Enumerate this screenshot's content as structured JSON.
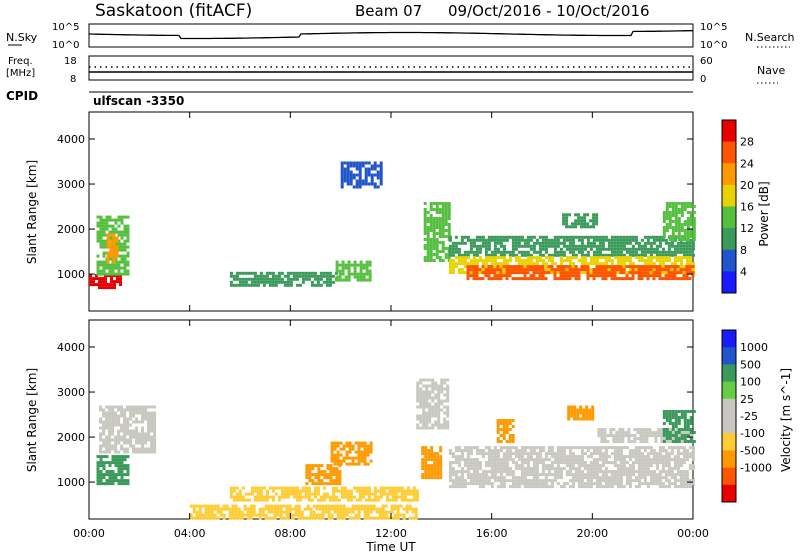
{
  "header": {
    "station": "Saskatoon (fitACF)",
    "beam": "Beam 07",
    "date_range": "09/Oct/2016 - 10/Oct/2016",
    "cpid_label": "CPID",
    "cpid_value": "ulfscan -3350"
  },
  "top_panels": {
    "nsky_label": "N.Sky",
    "nsky_ticks": [
      "10^5",
      "10^0"
    ],
    "nsearch_label": "N.Search",
    "nsearch_ticks": [
      "10^5",
      "10^0"
    ],
    "freq_label_1": "Freq.",
    "freq_label_2": "[MHz]",
    "freq_ticks": [
      "18",
      "8"
    ],
    "nave_label": "Nave",
    "nave_ticks": [
      "60",
      "0"
    ]
  },
  "colors": {
    "power_scale": [
      "#1a1aff",
      "#2255cc",
      "#3a9a5a",
      "#55c040",
      "#e8d200",
      "#ff9900",
      "#ff5500",
      "#e80000"
    ],
    "velocity_scale": [
      "#e80000",
      "#ff5500",
      "#ff9900",
      "#ffcc33",
      "#c8c8c0",
      "#c8c8c0",
      "#66cc44",
      "#3a9a5a",
      "#2255cc",
      "#1a1aff"
    ]
  },
  "chart_data": [
    {
      "type": "heatmap",
      "panel": "power",
      "ylabel": "Slant Range [km]",
      "yticks": [
        1000,
        2000,
        3000,
        4000
      ],
      "ylim": [
        180,
        4600
      ],
      "xlim": [
        0,
        24
      ],
      "colorbar_label": "Power [dB]",
      "colorbar_ticks": [
        4,
        8,
        12,
        16,
        20,
        24,
        28
      ],
      "colorbar_range": [
        0,
        32
      ],
      "regions": [
        {
          "t0": 0.0,
          "t1": 1.3,
          "r0": 700,
          "r1": 1000,
          "value": 30
        },
        {
          "t0": 0.3,
          "t1": 1.6,
          "r0": 1000,
          "r1": 2300,
          "value": 14
        },
        {
          "t0": 0.7,
          "t1": 1.1,
          "r0": 1300,
          "r1": 1900,
          "value": 22
        },
        {
          "t0": 5.6,
          "t1": 9.8,
          "r0": 750,
          "r1": 1050,
          "value": 9
        },
        {
          "t0": 9.8,
          "t1": 11.2,
          "r0": 900,
          "r1": 1300,
          "value": 12
        },
        {
          "t0": 10.0,
          "t1": 11.6,
          "r0": 2950,
          "r1": 3500,
          "value": 6
        },
        {
          "t0": 13.3,
          "t1": 14.3,
          "r0": 1300,
          "r1": 2600,
          "value": 14
        },
        {
          "t0": 14.3,
          "t1": 24.0,
          "r0": 1400,
          "r1": 1850,
          "value": 9
        },
        {
          "t0": 14.3,
          "t1": 24.0,
          "r0": 1050,
          "r1": 1400,
          "value": 18
        },
        {
          "t0": 15.0,
          "t1": 24.0,
          "r0": 900,
          "r1": 1200,
          "value": 26
        },
        {
          "t0": 18.8,
          "t1": 20.2,
          "r0": 2050,
          "r1": 2350,
          "value": 10
        },
        {
          "t0": 22.8,
          "t1": 24.0,
          "r0": 1800,
          "r1": 2600,
          "value": 12
        }
      ]
    },
    {
      "type": "heatmap",
      "panel": "velocity",
      "ylabel": "Slant Range [km]",
      "yticks": [
        1000,
        2000,
        3000,
        4000
      ],
      "ylim": [
        180,
        4600
      ],
      "xlim": [
        0,
        24
      ],
      "xlabel": "Time UT",
      "xticks": [
        "00:00",
        "04:00",
        "08:00",
        "12:00",
        "16:00",
        "20:00",
        "00:00"
      ],
      "colorbar_label": "Velocity [m s^-1]",
      "colorbar_ticks": [
        "1000",
        "500",
        "100",
        "25",
        "-25",
        "-100",
        "-500",
        "-1000"
      ],
      "regions": [
        {
          "t0": 0.3,
          "t1": 1.6,
          "r0": 1000,
          "r1": 1600,
          "value": 150
        },
        {
          "t0": 0.4,
          "t1": 2.6,
          "r0": 1700,
          "r1": 2700,
          "value": 0
        },
        {
          "t0": 5.6,
          "t1": 13.0,
          "r0": 600,
          "r1": 900,
          "value": -60
        },
        {
          "t0": 8.6,
          "t1": 10.0,
          "r0": 1000,
          "r1": 1400,
          "value": -200
        },
        {
          "t0": 9.6,
          "t1": 11.2,
          "r0": 1400,
          "r1": 1900,
          "value": -350
        },
        {
          "t0": 13.2,
          "t1": 14.0,
          "r0": 1100,
          "r1": 1800,
          "value": -300
        },
        {
          "t0": 13.0,
          "t1": 14.3,
          "r0": 2200,
          "r1": 3300,
          "value": 0
        },
        {
          "t0": 14.3,
          "t1": 24.0,
          "r0": 900,
          "r1": 1800,
          "value": 0
        },
        {
          "t0": 20.2,
          "t1": 24.0,
          "r0": 1900,
          "r1": 2200,
          "value": 0
        },
        {
          "t0": 16.2,
          "t1": 16.8,
          "r0": 1900,
          "r1": 2400,
          "value": -250
        },
        {
          "t0": 19.0,
          "t1": 20.0,
          "r0": 2400,
          "r1": 2700,
          "value": -250
        },
        {
          "t0": 22.8,
          "t1": 24.0,
          "r0": 1900,
          "r1": 2600,
          "value": 150
        },
        {
          "t0": 4.0,
          "t1": 13.0,
          "r0": 180,
          "r1": 500,
          "value": -60
        }
      ]
    }
  ]
}
